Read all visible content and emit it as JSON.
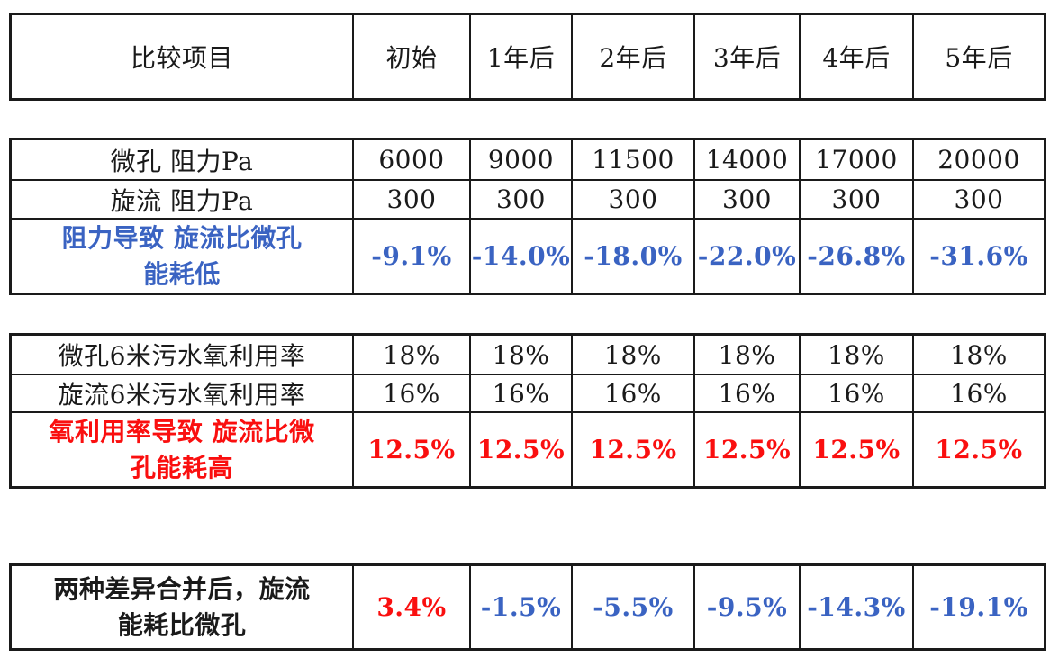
{
  "colors": {
    "background": "#ffffff",
    "border": "#1a1a1a",
    "text_black": "#1a1a1a",
    "value_blue": "#3a63c2",
    "value_red": "#fa0f0f"
  },
  "chart_data": {
    "type": "table",
    "header_row": {
      "label": "比较项目",
      "periods": [
        "初始",
        "1年后",
        "2年后",
        "3年后",
        "4年后",
        "5年后"
      ]
    },
    "sections": [
      {
        "name": "resistance",
        "rows": [
          {
            "label": "微孔 阻力Pa",
            "text_color": "black",
            "bold": false,
            "values": [
              "6000",
              "9000",
              "11500",
              "14000",
              "17000",
              "20000"
            ]
          },
          {
            "label": "旋流 阻力Pa",
            "text_color": "black",
            "bold": false,
            "values": [
              "300",
              "300",
              "300",
              "300",
              "300",
              "300"
            ]
          },
          {
            "label": "阻力导致 旋流比微孔",
            "label_line2": "能耗低",
            "text_color": "blue",
            "bold": true,
            "values": [
              "-9.1%",
              "-14.0%",
              "-18.0%",
              "-22.0%",
              "-26.8%",
              "-31.6%"
            ]
          }
        ]
      },
      {
        "name": "oxygen_utilization",
        "rows": [
          {
            "label": "微孔6米污水氧利用率",
            "text_color": "black",
            "bold": false,
            "values": [
              "18%",
              "18%",
              "18%",
              "18%",
              "18%",
              "18%"
            ]
          },
          {
            "label": "旋流6米污水氧利用率",
            "text_color": "black",
            "bold": false,
            "values": [
              "16%",
              "16%",
              "16%",
              "16%",
              "16%",
              "16%"
            ]
          },
          {
            "label": "氧利用率导致 旋流比微",
            "label_line2": "孔能耗高",
            "text_color": "red",
            "bold": true,
            "values": [
              "12.5%",
              "12.5%",
              "12.5%",
              "12.5%",
              "12.5%",
              "12.5%"
            ]
          }
        ]
      },
      {
        "name": "combined",
        "rows": [
          {
            "label": "两种差异合并后，旋流",
            "label_line2": "能耗比微孔",
            "text_color": "black",
            "bold": true,
            "values": [
              "3.4%",
              "-1.5%",
              "-5.5%",
              "-9.5%",
              "-14.3%",
              "-19.1%"
            ],
            "value_colors": [
              "red",
              "blue",
              "blue",
              "blue",
              "blue",
              "blue"
            ]
          }
        ]
      }
    ]
  }
}
